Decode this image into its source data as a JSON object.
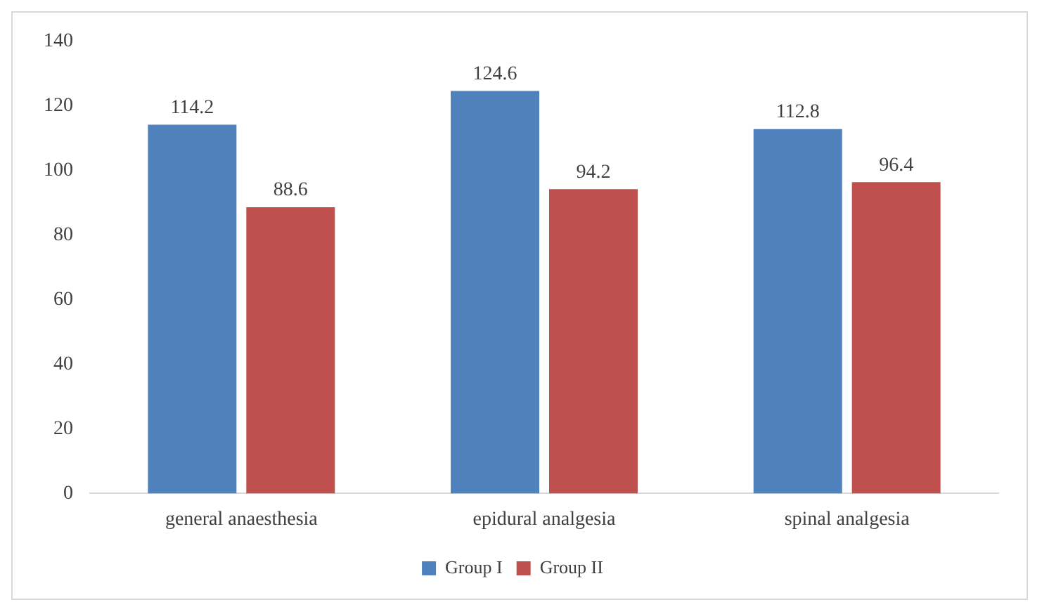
{
  "chart_data": {
    "type": "bar",
    "categories": [
      "general anaesthesia",
      "epidural analgesia",
      "spinal analgesia"
    ],
    "series": [
      {
        "name": "Group I",
        "color": "#4f81bd",
        "values": [
          114.2,
          124.6,
          112.8
        ]
      },
      {
        "name": "Group II",
        "color": "#c0504d",
        "values": [
          88.6,
          94.2,
          96.4
        ]
      }
    ],
    "ylim": [
      0,
      140
    ],
    "yticks": [
      0,
      20,
      40,
      60,
      80,
      100,
      120,
      140
    ],
    "grid": false,
    "legend": "bottom",
    "data_labels": true
  }
}
